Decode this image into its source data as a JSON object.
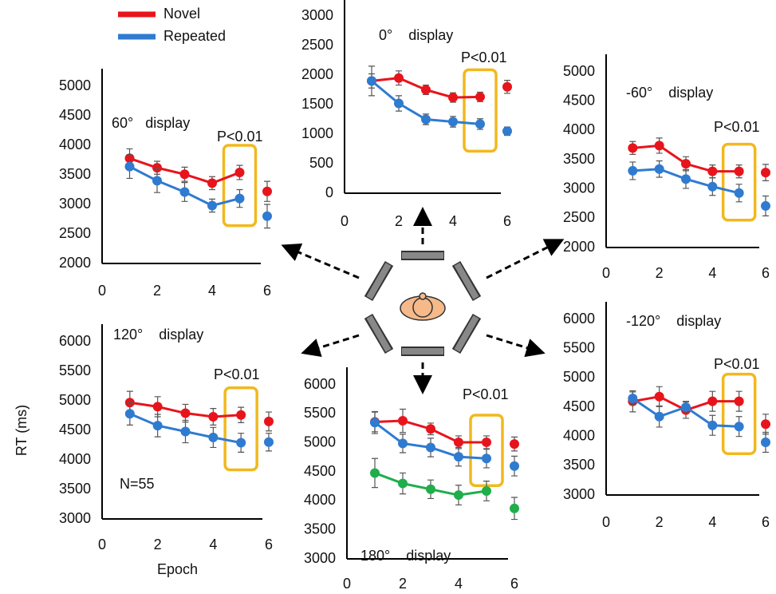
{
  "chart_data": [
    {
      "type": "line",
      "title": "60°   display",
      "annotation": "P<0.01",
      "x": [
        1,
        2,
        3,
        4,
        5,
        6
      ],
      "connect_until_x": 5,
      "highlight_x": 5,
      "xlim": [
        0,
        6
      ],
      "xticks": [
        0,
        2,
        4,
        6
      ],
      "ylim": [
        2000,
        5000
      ],
      "yticks": [
        2000,
        2500,
        3000,
        3500,
        4000,
        4500,
        5000
      ],
      "series": [
        {
          "name": "Novel",
          "color": "#e8141c",
          "values": [
            3780,
            3620,
            3510,
            3360,
            3540,
            3220
          ],
          "errors": [
            160,
            110,
            120,
            110,
            120,
            170
          ]
        },
        {
          "name": "Repeated",
          "color": "#2f7bd0",
          "values": [
            3640,
            3400,
            3210,
            2980,
            3100,
            2800
          ],
          "errors": [
            200,
            200,
            160,
            110,
            150,
            200
          ]
        }
      ]
    },
    {
      "type": "line",
      "title": "0°    display",
      "annotation": "P<0.01",
      "x": [
        1,
        2,
        3,
        4,
        5,
        6
      ],
      "connect_until_x": 5,
      "highlight_x": 5,
      "xlim": [
        0,
        6
      ],
      "xticks": [
        0,
        2,
        4,
        6
      ],
      "ylim": [
        0,
        3000
      ],
      "yticks": [
        0,
        500,
        1000,
        1500,
        2000,
        2500,
        3000
      ],
      "series": [
        {
          "name": "Novel",
          "color": "#e8141c",
          "values": [
            1900,
            1950,
            1750,
            1620,
            1630,
            1800
          ],
          "errors": [
            120,
            120,
            80,
            80,
            80,
            110
          ]
        },
        {
          "name": "Repeated",
          "color": "#2f7bd0",
          "values": [
            1900,
            1520,
            1250,
            1210,
            1170,
            1050
          ],
          "errors": [
            250,
            130,
            90,
            90,
            90,
            70
          ]
        }
      ]
    },
    {
      "type": "line",
      "title": "-60°    display",
      "annotation": "P<0.01",
      "x": [
        1,
        2,
        3,
        4,
        5,
        6
      ],
      "connect_until_x": 5,
      "highlight_x": 5,
      "xlim": [
        0,
        6
      ],
      "xticks": [
        0,
        2,
        4,
        6
      ],
      "ylim": [
        2000,
        5000
      ],
      "yticks": [
        2000,
        2500,
        3000,
        3500,
        4000,
        4500,
        5000
      ],
      "series": [
        {
          "name": "Novel",
          "color": "#e8141c",
          "values": [
            3700,
            3740,
            3430,
            3300,
            3300,
            3280
          ],
          "errors": [
            110,
            130,
            120,
            110,
            110,
            140
          ]
        },
        {
          "name": "Repeated",
          "color": "#2f7bd0",
          "values": [
            3310,
            3340,
            3170,
            3040,
            2930,
            2710
          ],
          "errors": [
            150,
            140,
            160,
            150,
            150,
            170
          ]
        }
      ]
    },
    {
      "type": "line",
      "title": "120°    display",
      "annotation": "P<0.01",
      "note": "N=55",
      "ylabel": "RT (ms)",
      "xlabel": "Epoch",
      "x": [
        1,
        2,
        3,
        4,
        5,
        6
      ],
      "connect_until_x": 5,
      "highlight_x": 5,
      "xlim": [
        0,
        6
      ],
      "xticks": [
        0,
        2,
        4,
        6
      ],
      "ylim": [
        3000,
        6000
      ],
      "yticks": [
        3000,
        3500,
        4000,
        4500,
        5000,
        5500,
        6000
      ],
      "series": [
        {
          "name": "Novel",
          "color": "#e8141c",
          "values": [
            4970,
            4900,
            4790,
            4730,
            4760,
            4650
          ],
          "errors": [
            190,
            170,
            150,
            140,
            130,
            160
          ]
        },
        {
          "name": "Repeated",
          "color": "#2f7bd0",
          "values": [
            4780,
            4580,
            4480,
            4380,
            4290,
            4300
          ],
          "errors": [
            190,
            190,
            190,
            170,
            160,
            150
          ]
        }
      ]
    },
    {
      "type": "line",
      "title": "180°    display",
      "annotation": "P<0.01",
      "x": [
        1,
        2,
        3,
        4,
        5,
        6
      ],
      "connect_until_x": 5,
      "highlight_x": 5,
      "xlim": [
        0,
        6
      ],
      "xticks": [
        0,
        2,
        4,
        6
      ],
      "ylim": [
        3000,
        6000
      ],
      "yticks": [
        3000,
        3500,
        4000,
        4500,
        5000,
        5500,
        6000
      ],
      "series": [
        {
          "name": "Novel",
          "color": "#e8141c",
          "values": [
            5360,
            5380,
            5240,
            5010,
            5010,
            4980
          ],
          "errors": [
            170,
            200,
            100,
            110,
            110,
            120
          ]
        },
        {
          "name": "Repeated",
          "color": "#2f7bd0",
          "values": [
            5350,
            4990,
            4920,
            4760,
            4730,
            4600
          ],
          "errors": [
            190,
            160,
            160,
            160,
            160,
            170
          ]
        },
        {
          "color": "#1fae4b",
          "values": [
            4480,
            4300,
            4200,
            4100,
            4170,
            3870
          ],
          "errors": [
            250,
            180,
            160,
            170,
            170,
            190
          ]
        }
      ]
    },
    {
      "type": "line",
      "title": "-120°    display",
      "annotation": "P<0.01",
      "x": [
        1,
        2,
        3,
        4,
        5,
        6
      ],
      "connect_until_x": 5,
      "highlight_x": 5,
      "xlim": [
        0,
        6
      ],
      "xticks": [
        0,
        2,
        4,
        6
      ],
      "ylim": [
        3000,
        6000
      ],
      "yticks": [
        3000,
        3500,
        4000,
        4500,
        5000,
        5500,
        6000
      ],
      "series": [
        {
          "name": "Novel",
          "color": "#e8141c",
          "values": [
            4600,
            4680,
            4450,
            4600,
            4600,
            4210
          ],
          "errors": [
            180,
            170,
            140,
            170,
            170,
            170
          ]
        },
        {
          "name": "Repeated",
          "color": "#2f7bd0",
          "values": [
            4650,
            4340,
            4500,
            4190,
            4170,
            3900
          ],
          "errors": [
            110,
            180,
            100,
            170,
            170,
            170
          ]
        }
      ]
    }
  ]
}
